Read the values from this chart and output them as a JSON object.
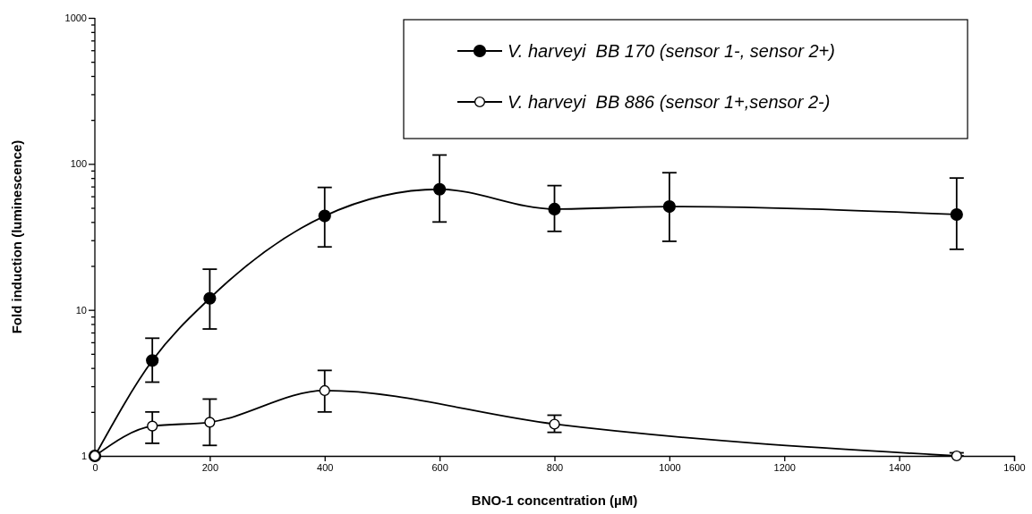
{
  "chart_data": {
    "type": "line",
    "xlabel": "BNO-1 concentration (µM)",
    "ylabel": "Fold induction (luminescence)",
    "xlim": [
      0,
      1600
    ],
    "xticks": [
      0,
      200,
      400,
      600,
      800,
      1000,
      1200,
      1400,
      1600
    ],
    "ylim": [
      1,
      1000
    ],
    "yticks": [
      1,
      {
        "value": 2,
        "label": null
      },
      {
        "value": 3,
        "label": null
      },
      {
        "value": 4,
        "label": null
      },
      {
        "value": 5,
        "label": null
      },
      {
        "value": 6,
        "label": null
      },
      {
        "value": 7,
        "label": null
      },
      {
        "value": 8,
        "label": null
      },
      {
        "value": 9,
        "label": null
      },
      10,
      {
        "value": 20,
        "label": null
      },
      {
        "value": 30,
        "label": null
      },
      {
        "value": 40,
        "label": null
      },
      {
        "value": 50,
        "label": null
      },
      {
        "value": 60,
        "label": null
      },
      {
        "value": 70,
        "label": null
      },
      {
        "value": 80,
        "label": null
      },
      {
        "value": 90,
        "label": null
      },
      100,
      {
        "value": 200,
        "label": null
      },
      {
        "value": 300,
        "label": null
      },
      {
        "value": 400,
        "label": null
      },
      {
        "value": 500,
        "label": null
      },
      {
        "value": 600,
        "label": null
      },
      {
        "value": 700,
        "label": null
      },
      {
        "value": 800,
        "label": null
      },
      {
        "value": 900,
        "label": null
      },
      1000
    ],
    "log": "y",
    "grid": false,
    "legend": "top right",
    "marker": "circle",
    "line_style": "solid",
    "series": [
      {
        "name": "V. harveyi  BB 170 (sensor 1-, sensor 2+)",
        "color": "#000000",
        "x": [
          0,
          100,
          200,
          400,
          600,
          800,
          1000,
          1500
        ],
        "values": [
          1,
          4.5,
          12,
          44,
          67,
          49,
          51,
          45
        ],
        "errors": [
          null,
          [
            3.2,
            6.4
          ],
          [
            7.4,
            19
          ],
          [
            27,
            69
          ],
          [
            40,
            115
          ],
          [
            34.5,
            71
          ],
          [
            29.5,
            87
          ],
          [
            26,
            80
          ]
        ]
      },
      {
        "name": "V. harveyi  BB 886 (sensor 1+,sensor 2-)",
        "color": "#ffffff",
        "x": [
          0,
          100,
          200,
          400,
          800,
          1500
        ],
        "values": [
          1,
          1.6,
          1.7,
          2.8,
          1.65,
          1
        ],
        "errors": [
          null,
          [
            1.22,
            2.0
          ],
          [
            1.18,
            2.45
          ],
          [
            2.0,
            3.85
          ],
          [
            1.45,
            1.9
          ],
          [
            1,
            1.05
          ]
        ]
      }
    ]
  }
}
